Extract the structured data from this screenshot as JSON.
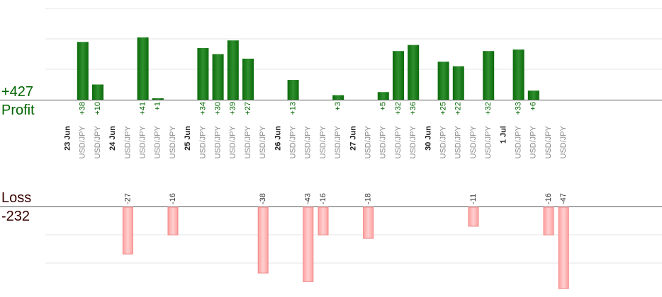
{
  "summary": {
    "profit_total": "+427",
    "profit_label": "Profit",
    "loss_label": "Loss",
    "loss_total": "-232"
  },
  "colors": {
    "profit_bar": "#0b6b0b",
    "profit_bar_light": "#2f8f2f",
    "profit_text": "#006400",
    "loss_bar": "#ffb3b3",
    "loss_bar_border": "#ee8888",
    "loss_text": "#333333",
    "date_text": "#222222",
    "pair_text": "#8a8a8a",
    "grid": "#e6e6e6",
    "axis": "#555555"
  },
  "chart_data": {
    "type": "bar",
    "title": "",
    "xlabel": "",
    "ylabel": "",
    "profit_ylim": [
      0,
      50
    ],
    "loss_ylim": [
      -50,
      0
    ],
    "columns": [
      {
        "kind": "date",
        "label": "23 Jun"
      },
      {
        "kind": "trade",
        "pair": "USD/JPY",
        "value": 38
      },
      {
        "kind": "trade",
        "pair": "USD/JPY",
        "value": 10
      },
      {
        "kind": "date",
        "label": "24 Jun"
      },
      {
        "kind": "trade",
        "pair": "USD/JPY",
        "value": -27
      },
      {
        "kind": "trade",
        "pair": "USD/JPY",
        "value": 41
      },
      {
        "kind": "trade",
        "pair": "USD/JPY",
        "value": 1
      },
      {
        "kind": "trade",
        "pair": "USD/JPY",
        "value": -16
      },
      {
        "kind": "date",
        "label": "25 Jun"
      },
      {
        "kind": "trade",
        "pair": "USD/JPY",
        "value": 34
      },
      {
        "kind": "trade",
        "pair": "USD/JPY",
        "value": 30
      },
      {
        "kind": "trade",
        "pair": "USD/JPY",
        "value": 39
      },
      {
        "kind": "trade",
        "pair": "USD/JPY",
        "value": 27
      },
      {
        "kind": "trade",
        "pair": "USD/JPY",
        "value": -38
      },
      {
        "kind": "date",
        "label": "26 Jun"
      },
      {
        "kind": "trade",
        "pair": "USD/JPY",
        "value": 13
      },
      {
        "kind": "trade",
        "pair": "USD/JPY",
        "value": -43
      },
      {
        "kind": "trade",
        "pair": "USD/JPY",
        "value": -16
      },
      {
        "kind": "trade",
        "pair": "USD/JPY",
        "value": 3
      },
      {
        "kind": "date",
        "label": "27 Jun"
      },
      {
        "kind": "trade",
        "pair": "USD/JPY",
        "value": -18
      },
      {
        "kind": "trade",
        "pair": "USD/JPY",
        "value": 5
      },
      {
        "kind": "trade",
        "pair": "USD/JPY",
        "value": 32
      },
      {
        "kind": "trade",
        "pair": "USD/JPY",
        "value": 36
      },
      {
        "kind": "date",
        "label": "30 Jun"
      },
      {
        "kind": "trade",
        "pair": "USD/JPY",
        "value": 25
      },
      {
        "kind": "trade",
        "pair": "USD/JPY",
        "value": 22
      },
      {
        "kind": "trade",
        "pair": "USD/JPY",
        "value": -11
      },
      {
        "kind": "trade",
        "pair": "USD/JPY",
        "value": 32
      },
      {
        "kind": "date",
        "label": "1 Jul"
      },
      {
        "kind": "trade",
        "pair": "USD/JPY",
        "value": 33
      },
      {
        "kind": "trade",
        "pair": "USD/JPY",
        "value": 6
      },
      {
        "kind": "trade",
        "pair": "USD/JPY",
        "value": -16
      },
      {
        "kind": "trade",
        "pair": "USD/JPY",
        "value": -47
      }
    ]
  }
}
